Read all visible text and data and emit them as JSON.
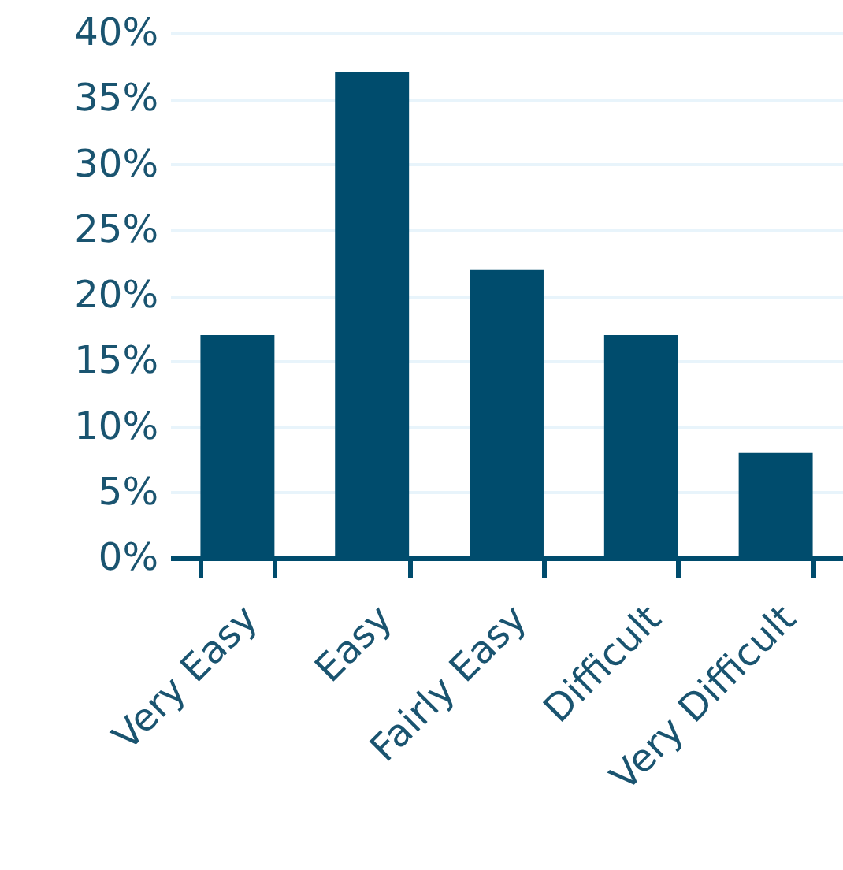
{
  "chart_data": {
    "type": "bar",
    "categories": [
      "Very Easy",
      "Easy",
      "Fairly Easy",
      "Difficult",
      "Very Difficult"
    ],
    "values": [
      17,
      37,
      22,
      17,
      8
    ],
    "color": "#004c6d",
    "ylim": [
      0,
      40
    ],
    "yticks": [
      {
        "value": 0,
        "label": "0%"
      },
      {
        "value": 5,
        "label": "5%"
      },
      {
        "value": 10,
        "label": "10%"
      },
      {
        "value": 15,
        "label": "15%"
      },
      {
        "value": 20,
        "label": "20%"
      },
      {
        "value": 25,
        "label": "25%"
      },
      {
        "value": 30,
        "label": "30%"
      },
      {
        "value": 35,
        "label": "35%"
      },
      {
        "value": 40,
        "label": "40%"
      }
    ],
    "grid": "y"
  }
}
